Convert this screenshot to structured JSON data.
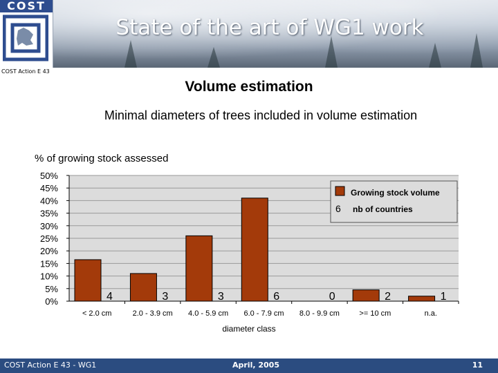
{
  "header": {
    "logo_text": "COST",
    "title": "State of the art of WG1 work",
    "action_label": "COST Action E 43"
  },
  "heading": "Volume estimation",
  "chart_data": {
    "type": "bar",
    "title": "Minimal diameters of trees included in volume estimation",
    "ylabel": "% of growing stock assessed",
    "xlabel": "diameter class",
    "categories": [
      "< 2.0 cm",
      "2.0 - 3.9 cm",
      "4.0 - 5.9 cm",
      "6.0 - 7.9 cm",
      "8.0 - 9.9 cm",
      ">= 10 cm",
      "n.a."
    ],
    "series": [
      {
        "name": "Growing stock volume",
        "values": [
          16.5,
          11,
          26,
          41,
          0,
          4.5,
          2
        ]
      },
      {
        "name": "nb of countries",
        "values": [
          4,
          3,
          3,
          6,
          0,
          2,
          1
        ]
      }
    ],
    "yticks": [
      "0%",
      "5%",
      "10%",
      "15%",
      "20%",
      "25%",
      "30%",
      "35%",
      "40%",
      "45%",
      "50%"
    ],
    "ylim": [
      0,
      50
    ],
    "grid": true,
    "legend": "top-right",
    "colors": {
      "bar": "#a33a0a",
      "plot_bg": "#dcdcdc",
      "gridline": "#999999"
    }
  },
  "footer": {
    "left": "COST Action E 43 - WG1",
    "center": "April, 2005",
    "page": "11"
  }
}
